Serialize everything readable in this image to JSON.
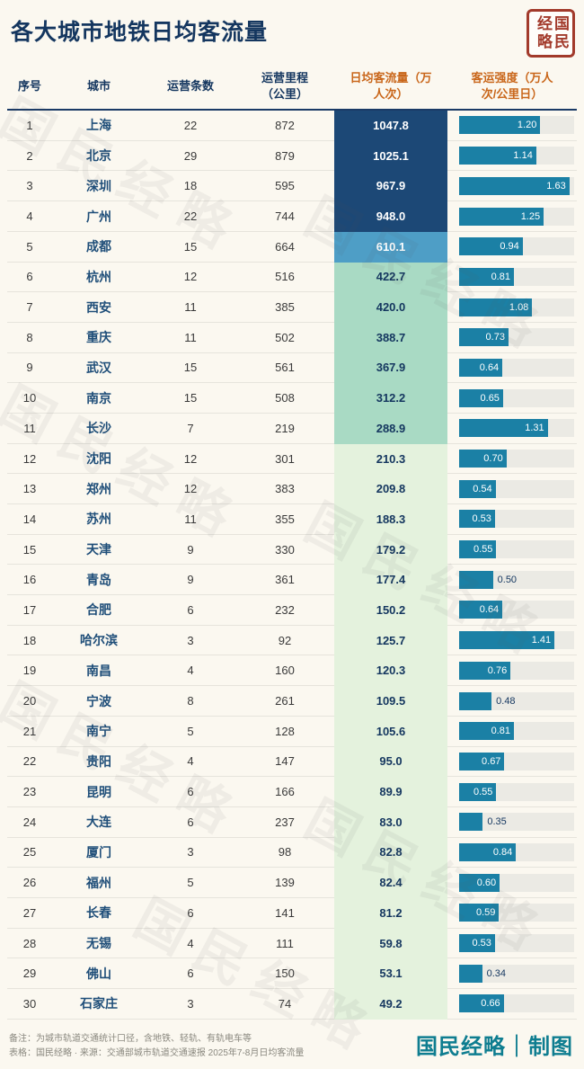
{
  "page": {
    "title": "各大城市地铁日均客流量",
    "seal_left": "经略",
    "seal_right": "国民",
    "watermark": "国民经略",
    "footer_note1": "备注：为城市轨道交通统计口径，含地铁、轻轨、有轨电车等",
    "footer_note2": "表格：国民经略 · 来源：交通部城市轨道交通速报 2025年7-8月日均客流量",
    "signature": "国民经略｜制图",
    "colors": {
      "title_navy": "#14365F",
      "header_accent_orange": "#C9661A",
      "city_navy": "#1F4E79",
      "bar_teal": "#1B80A5",
      "flow_tier1_dark_blue": "#1C4876",
      "flow_tier2_medium_blue": "#4E9EC6",
      "flow_tier3_mint": "#A9DAC4",
      "flow_tier4_pale_green": "#E4F2DD",
      "seal_red": "#A23A2B",
      "signature_teal": "#0E7D90"
    }
  },
  "table": {
    "headers": {
      "index": "序号",
      "city": "城市",
      "lines": "运营条数",
      "mileage": "运营里程\n（公里）",
      "flow": "日均客流量（万\n人次）",
      "intensity": "客运强度（万人\n次/公里日）"
    }
  },
  "chart_data": {
    "type": "table",
    "title": "各大城市地铁日均客流量",
    "columns": [
      "序号",
      "城市",
      "运营条数",
      "运营里程（公里）",
      "日均客流量（万人次）",
      "客运强度（万人次/公里日）"
    ],
    "rows": [
      [
        1,
        "上海",
        22,
        872,
        1047.8,
        1.2
      ],
      [
        2,
        "北京",
        29,
        879,
        1025.1,
        1.14
      ],
      [
        3,
        "深圳",
        18,
        595,
        967.9,
        1.63
      ],
      [
        4,
        "广州",
        22,
        744,
        948.0,
        1.25
      ],
      [
        5,
        "成都",
        15,
        664,
        610.1,
        0.94
      ],
      [
        6,
        "杭州",
        12,
        516,
        422.7,
        0.81
      ],
      [
        7,
        "西安",
        11,
        385,
        420.0,
        1.08
      ],
      [
        8,
        "重庆",
        11,
        502,
        388.7,
        0.73
      ],
      [
        9,
        "武汉",
        15,
        561,
        367.9,
        0.64
      ],
      [
        10,
        "南京",
        15,
        508,
        312.2,
        0.65
      ],
      [
        11,
        "长沙",
        7,
        219,
        288.9,
        1.31
      ],
      [
        12,
        "沈阳",
        12,
        301,
        210.3,
        0.7
      ],
      [
        13,
        "郑州",
        12,
        383,
        209.8,
        0.54
      ],
      [
        14,
        "苏州",
        11,
        355,
        188.3,
        0.53
      ],
      [
        15,
        "天津",
        9,
        330,
        179.2,
        0.55
      ],
      [
        16,
        "青岛",
        9,
        361,
        177.4,
        0.5
      ],
      [
        17,
        "合肥",
        6,
        232,
        150.2,
        0.64
      ],
      [
        18,
        "哈尔滨",
        3,
        92,
        125.7,
        1.41
      ],
      [
        19,
        "南昌",
        4,
        160,
        120.3,
        0.76
      ],
      [
        20,
        "宁波",
        8,
        261,
        109.5,
        0.48
      ],
      [
        21,
        "南宁",
        5,
        128,
        105.6,
        0.81
      ],
      [
        22,
        "贵阳",
        4,
        147,
        95.0,
        0.67
      ],
      [
        23,
        "昆明",
        6,
        166,
        89.9,
        0.55
      ],
      [
        24,
        "大连",
        6,
        237,
        83.0,
        0.35
      ],
      [
        25,
        "厦门",
        3,
        98,
        82.8,
        0.84
      ],
      [
        26,
        "福州",
        5,
        139,
        82.4,
        0.6
      ],
      [
        27,
        "长春",
        6,
        141,
        81.2,
        0.59
      ],
      [
        28,
        "无锡",
        4,
        111,
        59.8,
        0.53
      ],
      [
        29,
        "佛山",
        6,
        150,
        53.1,
        0.34
      ],
      [
        30,
        "石家庄",
        3,
        74,
        49.2,
        0.66
      ]
    ],
    "tier_thresholds": [
      900,
      500,
      250
    ],
    "embedded_bar": {
      "column": "客运强度（万人次/公里日）",
      "max_scale": 1.7,
      "label_inside_threshold": 0.52
    }
  }
}
